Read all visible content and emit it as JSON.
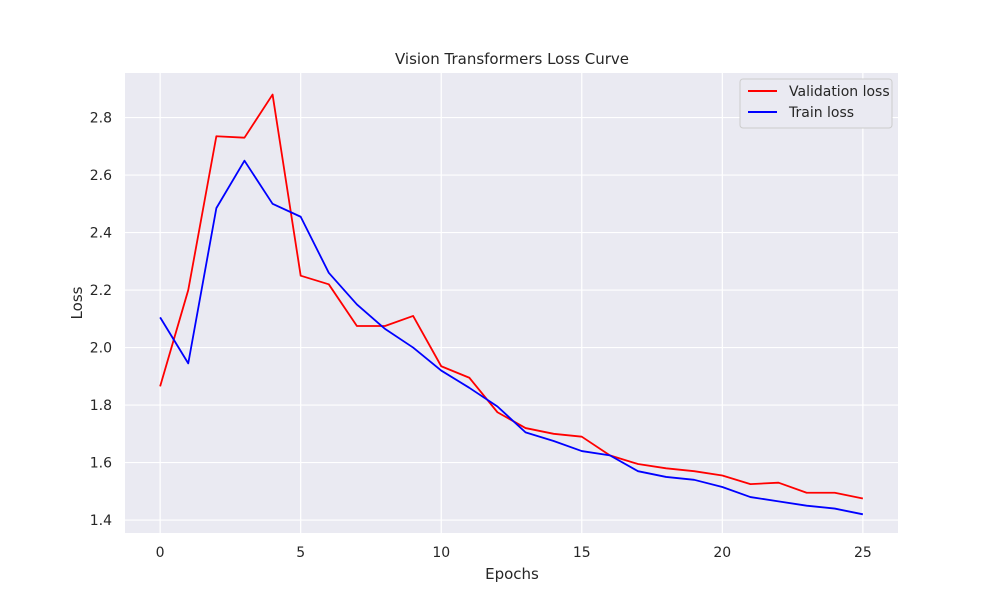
{
  "chart_data": {
    "type": "line",
    "title": "Vision Transformers Loss Curve",
    "xlabel": "Epochs",
    "ylabel": "Loss",
    "xlim": [
      -1.25,
      26.25
    ],
    "ylim": [
      1.355,
      2.955
    ],
    "x_ticks": [
      0,
      5,
      10,
      15,
      20,
      25
    ],
    "y_ticks": [
      1.4,
      1.6,
      1.8,
      2.0,
      2.2,
      2.4,
      2.6,
      2.8
    ],
    "grid": true,
    "legend_position": "top-right",
    "x": [
      0,
      1,
      2,
      3,
      4,
      5,
      6,
      7,
      8,
      9,
      10,
      11,
      12,
      13,
      14,
      15,
      16,
      17,
      18,
      19,
      20,
      21,
      22,
      23,
      24,
      25
    ],
    "series": [
      {
        "name": "Validation loss",
        "color": "#ff0000",
        "values": [
          1.865,
          2.2,
          2.735,
          2.73,
          2.88,
          2.25,
          2.22,
          2.075,
          2.075,
          2.11,
          1.935,
          1.895,
          1.775,
          1.72,
          1.7,
          1.69,
          1.625,
          1.595,
          1.58,
          1.57,
          1.555,
          1.525,
          1.53,
          1.495,
          1.495,
          1.475
        ]
      },
      {
        "name": "Train loss",
        "color": "#0000ff",
        "values": [
          2.105,
          1.945,
          2.485,
          2.65,
          2.5,
          2.455,
          2.26,
          2.15,
          2.065,
          2.0,
          1.92,
          1.86,
          1.795,
          1.705,
          1.675,
          1.64,
          1.625,
          1.57,
          1.55,
          1.54,
          1.515,
          1.48,
          1.465,
          1.45,
          1.44,
          1.42
        ]
      }
    ],
    "colors": {
      "plot_background": "#eaeaf2",
      "grid": "#ffffff"
    }
  }
}
